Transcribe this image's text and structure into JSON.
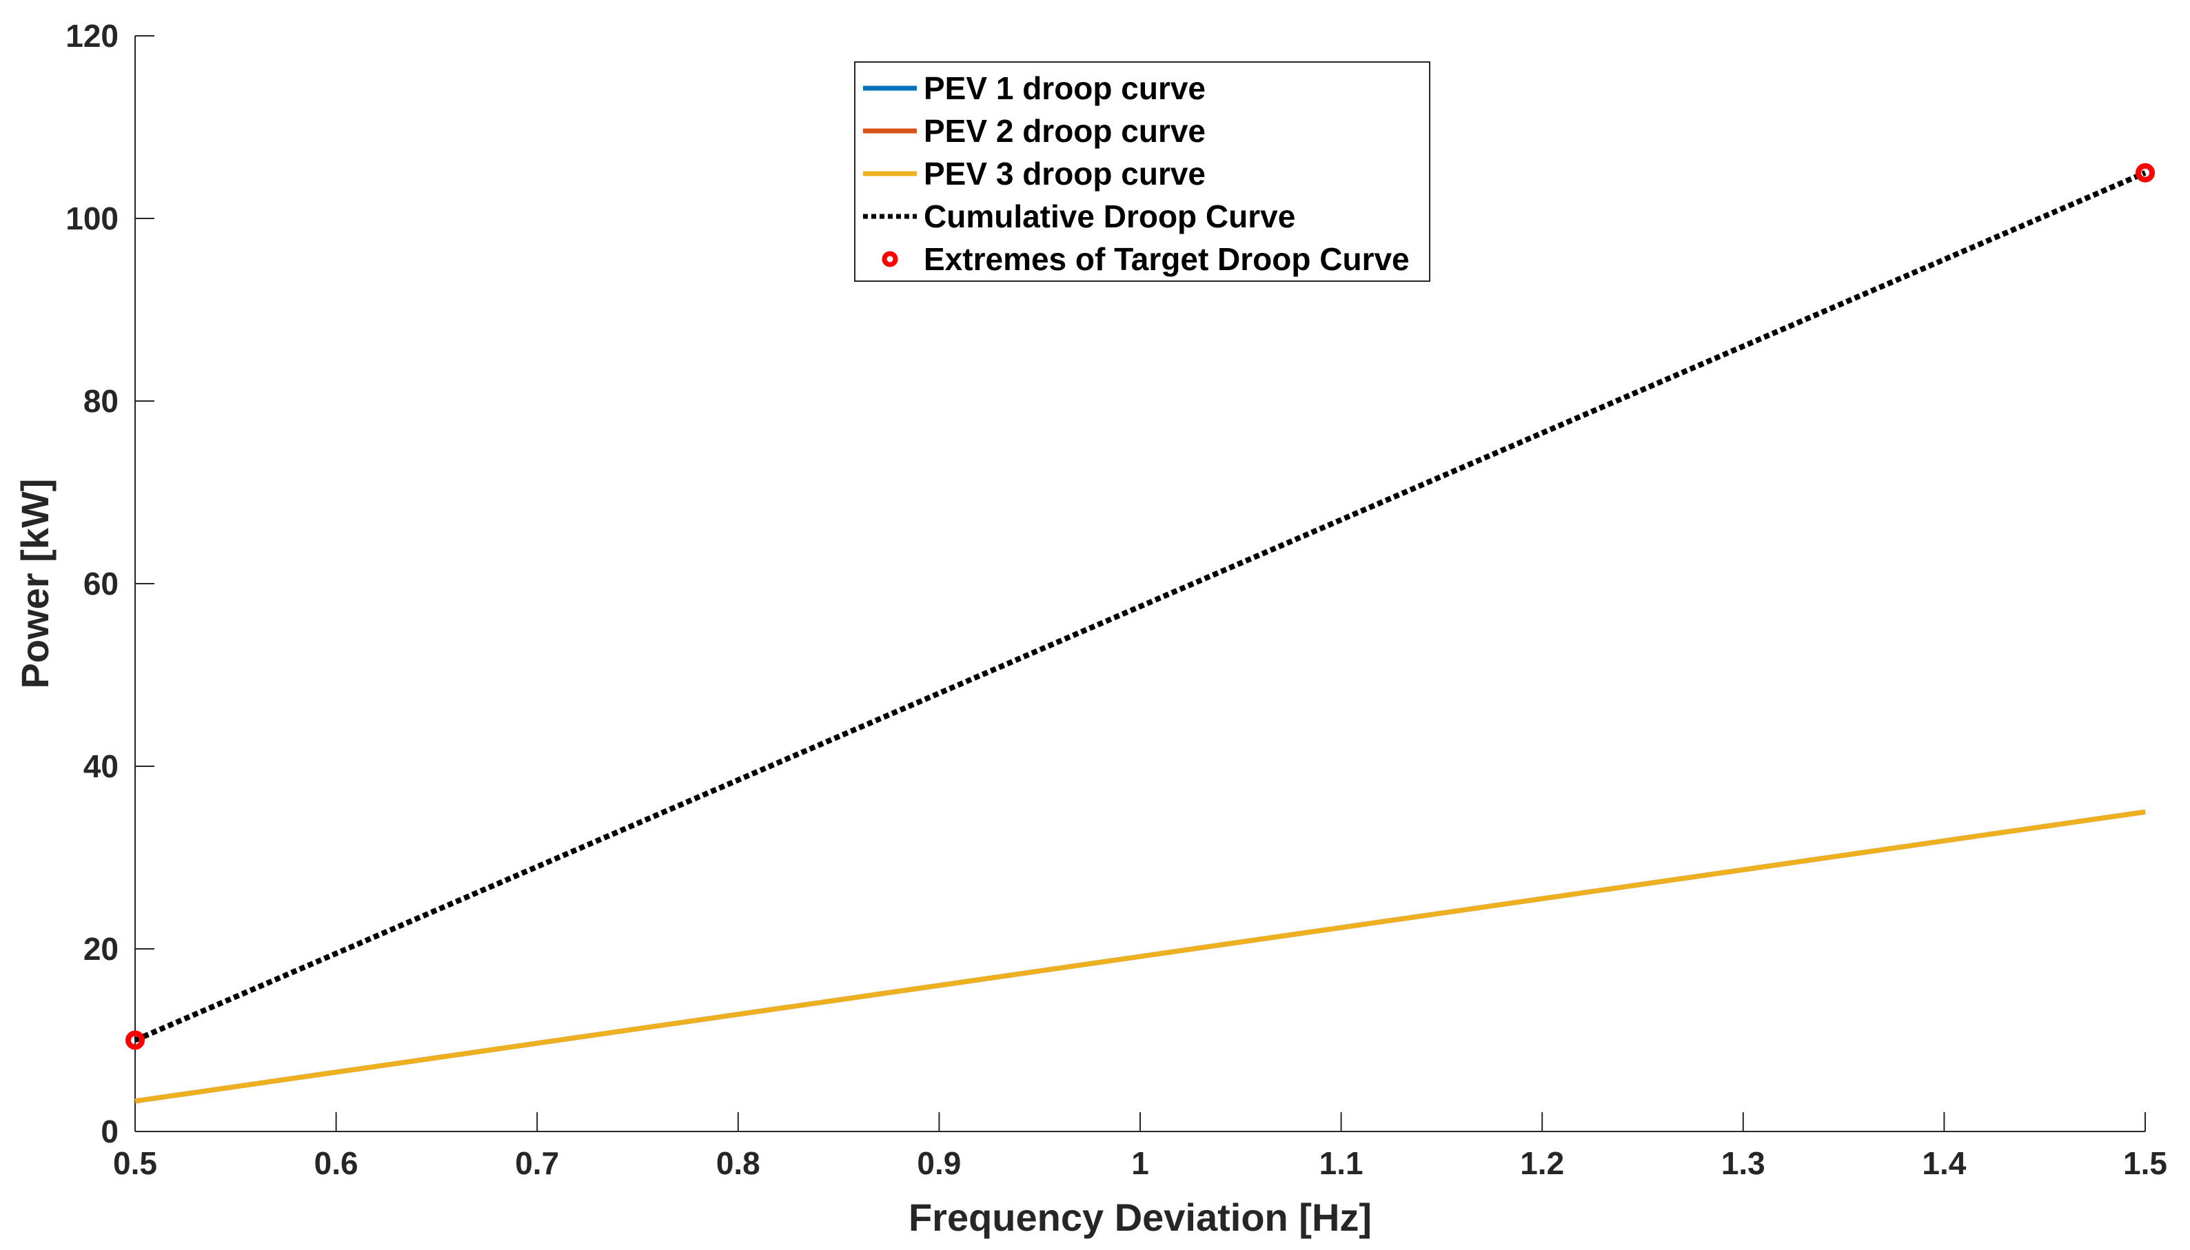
{
  "chart_data": {
    "type": "line",
    "title": "",
    "xlabel": "Frequency Deviation [Hz]",
    "ylabel": "Power [kW]",
    "xlim": [
      0.5,
      1.5
    ],
    "ylim": [
      0,
      120
    ],
    "grid": false,
    "legend_position": "top-center",
    "x_ticks": [
      0.5,
      0.6,
      0.7,
      0.8,
      0.9,
      1,
      1.1,
      1.2,
      1.3,
      1.4,
      1.5
    ],
    "x_tick_labels": [
      "0.5",
      "0.6",
      "0.7",
      "0.8",
      "0.9",
      "1",
      "1.1",
      "1.2",
      "1.3",
      "1.4",
      "1.5"
    ],
    "y_ticks": [
      0,
      20,
      40,
      60,
      80,
      100,
      120
    ],
    "y_tick_labels": [
      "0",
      "20",
      "40",
      "60",
      "80",
      "100",
      "120"
    ],
    "series": [
      {
        "name": "PEV 1 droop curve",
        "style": "solid",
        "color": "#0072BD",
        "x": [
          0.5,
          1.5
        ],
        "y": [
          3.33,
          35
        ]
      },
      {
        "name": "PEV 2 droop curve",
        "style": "solid",
        "color": "#D95319",
        "x": [
          0.5,
          1.5
        ],
        "y": [
          3.33,
          35
        ]
      },
      {
        "name": "PEV 3 droop curve",
        "style": "solid",
        "color": "#EDB120",
        "x": [
          0.5,
          1.5
        ],
        "y": [
          3.33,
          35
        ]
      },
      {
        "name": "Cumulative Droop Curve",
        "style": "dotted",
        "color": "#000000",
        "x": [
          0.5,
          1.5
        ],
        "y": [
          10,
          105
        ]
      },
      {
        "name": "Extremes of Target Droop Curve",
        "style": "markers",
        "color": "#FF0000",
        "x": [
          0.5,
          1.5
        ],
        "y": [
          10,
          105
        ]
      }
    ]
  }
}
